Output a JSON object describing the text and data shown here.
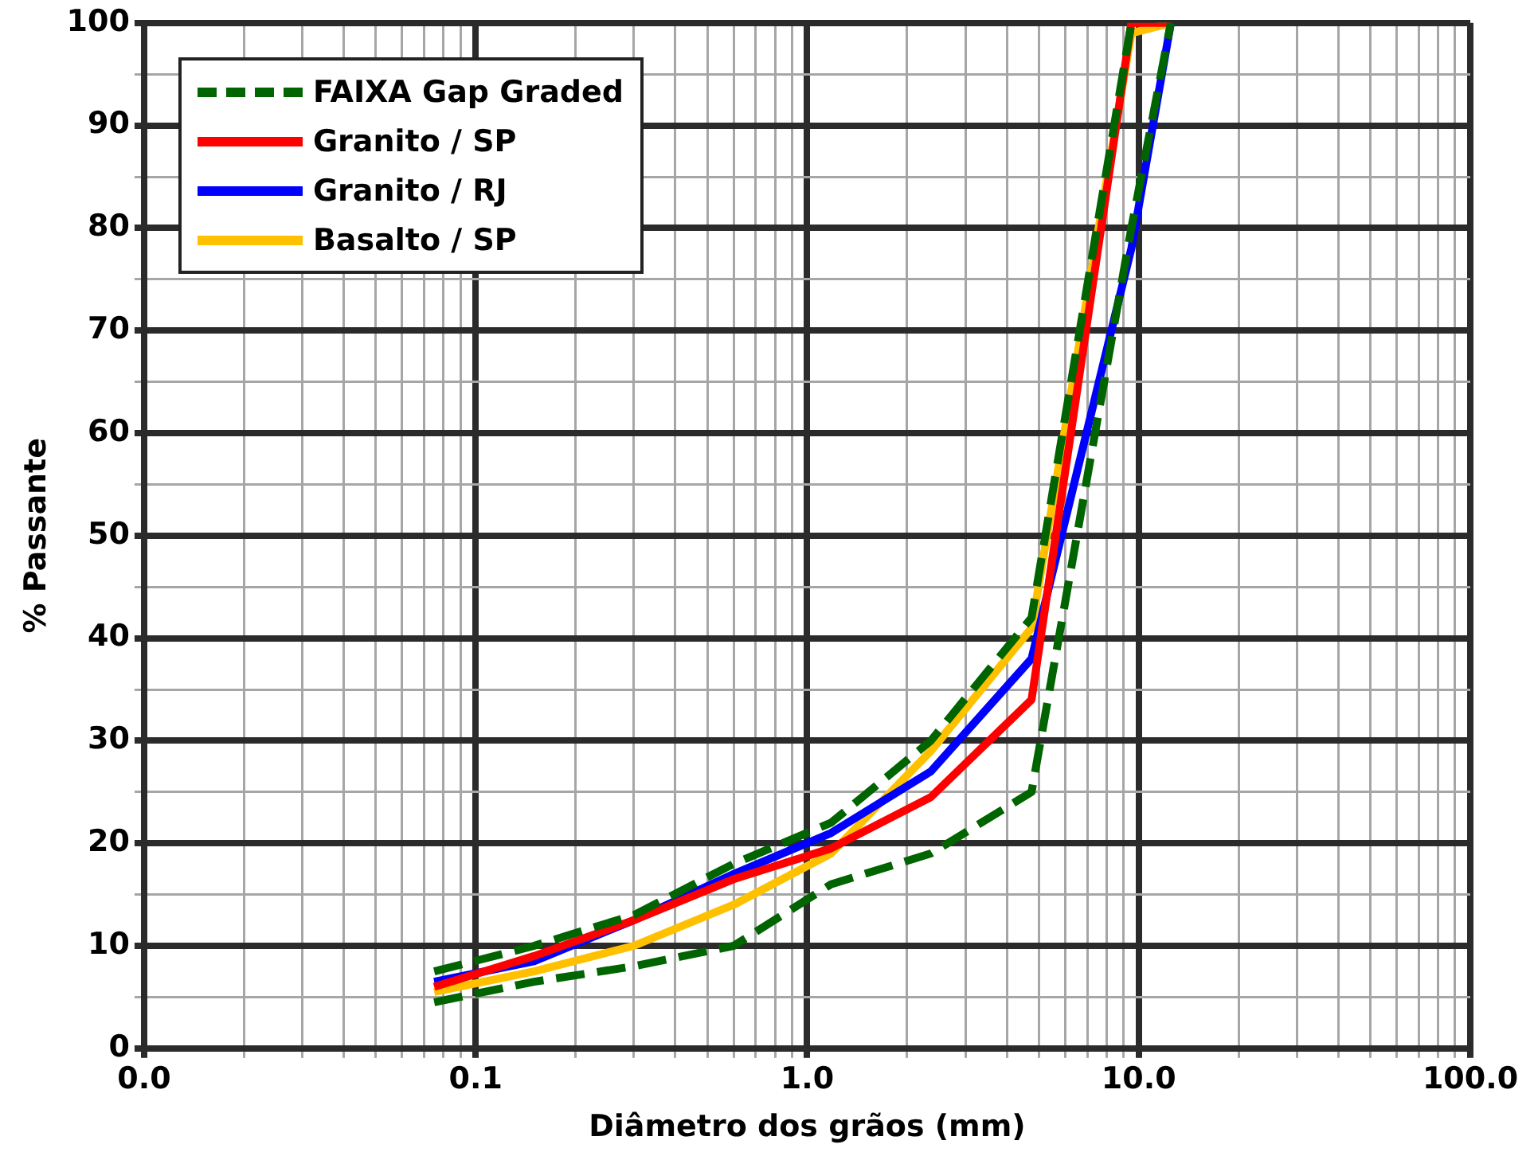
{
  "chart_data": {
    "type": "line",
    "xlabel": "Diâmetro dos grãos (mm)",
    "ylabel": "% Passante",
    "log": "x",
    "grid": true,
    "legend": "top left",
    "marker": "none",
    "xlim": [
      0.01,
      100
    ],
    "ylim": [
      0,
      100
    ],
    "xticks": [
      {
        "value": 0.01,
        "label": "0.0"
      },
      {
        "value": 0.02,
        "label": null
      },
      {
        "value": 0.03,
        "label": null
      },
      {
        "value": 0.04,
        "label": null
      },
      {
        "value": 0.05,
        "label": null
      },
      {
        "value": 0.06,
        "label": null
      },
      {
        "value": 0.07,
        "label": null
      },
      {
        "value": 0.08,
        "label": null
      },
      {
        "value": 0.09,
        "label": null
      },
      0.1,
      {
        "value": 0.2,
        "label": null
      },
      {
        "value": 0.3,
        "label": null
      },
      {
        "value": 0.4,
        "label": null
      },
      {
        "value": 0.5,
        "label": null
      },
      {
        "value": 0.6,
        "label": null
      },
      {
        "value": 0.7,
        "label": null
      },
      {
        "value": 0.8,
        "label": null
      },
      {
        "value": 0.9,
        "label": null
      },
      {
        "value": 1,
        "label": "1.0"
      },
      {
        "value": 2,
        "label": null
      },
      {
        "value": 3,
        "label": null
      },
      {
        "value": 4,
        "label": null
      },
      {
        "value": 5,
        "label": null
      },
      {
        "value": 6,
        "label": null
      },
      {
        "value": 7,
        "label": null
      },
      {
        "value": 8,
        "label": null
      },
      {
        "value": 9,
        "label": null
      },
      {
        "value": 10,
        "label": "10.0"
      },
      {
        "value": 20,
        "label": null
      },
      {
        "value": 30,
        "label": null
      },
      {
        "value": 40,
        "label": null
      },
      {
        "value": 50,
        "label": null
      },
      {
        "value": 60,
        "label": null
      },
      {
        "value": 70,
        "label": null
      },
      {
        "value": 80,
        "label": null
      },
      {
        "value": 90,
        "label": null
      },
      {
        "value": 100,
        "label": "100.0"
      }
    ],
    "yticks": [
      0,
      {
        "value": 5,
        "label": null
      },
      10,
      {
        "value": 15,
        "label": null
      },
      20,
      {
        "value": 25,
        "label": null
      },
      30,
      {
        "value": 35,
        "label": null
      },
      40,
      {
        "value": 45,
        "label": null
      },
      50,
      {
        "value": 55,
        "label": null
      },
      60,
      {
        "value": 65,
        "label": null
      },
      70,
      {
        "value": 75,
        "label": null
      },
      80,
      {
        "value": 85,
        "label": null
      },
      90,
      {
        "value": 95,
        "label": null
      },
      100
    ],
    "series": [
      {
        "name": "FAIXA Gap Graded",
        "color": "#006400",
        "line_style": "dashed",
        "x": [
          0.075,
          0.15,
          0.3,
          0.6,
          1.18,
          2.36,
          4.75,
          9.5
        ],
        "values": [
          7.5,
          10,
          13,
          18,
          22,
          30,
          42,
          100
        ]
      },
      {
        "color": "#006400",
        "line_style": "dashed",
        "x": [
          0.075,
          0.15,
          0.3,
          0.6,
          1.18,
          2.36,
          4.75,
          9.5,
          12.5
        ],
        "values": [
          4.5,
          6.5,
          8,
          10,
          16,
          19,
          25,
          80,
          100
        ]
      },
      {
        "name": "Granito / SP",
        "color": "#ff0000",
        "x": [
          0.075,
          0.15,
          0.3,
          0.6,
          1.18,
          2.36,
          4.75,
          9.5,
          12.5
        ],
        "values": [
          6,
          9,
          12.5,
          16.5,
          19.5,
          24.5,
          34,
          100,
          100
        ]
      },
      {
        "name": "Granito / RJ",
        "color": "#0000ff",
        "x": [
          0.075,
          0.15,
          0.3,
          0.6,
          1.18,
          2.36,
          4.75,
          9.5,
          12.5
        ],
        "values": [
          6.5,
          8.5,
          12.5,
          17,
          21,
          27,
          38,
          78,
          100
        ]
      },
      {
        "name": "Basalto / SP",
        "color": "#ffc000",
        "x": [
          0.075,
          0.15,
          0.3,
          0.6,
          1.18,
          2.36,
          4.75,
          9.5,
          12.5
        ],
        "values": [
          5.5,
          7.5,
          10,
          14,
          19,
          29,
          41,
          99,
          100
        ]
      }
    ]
  }
}
